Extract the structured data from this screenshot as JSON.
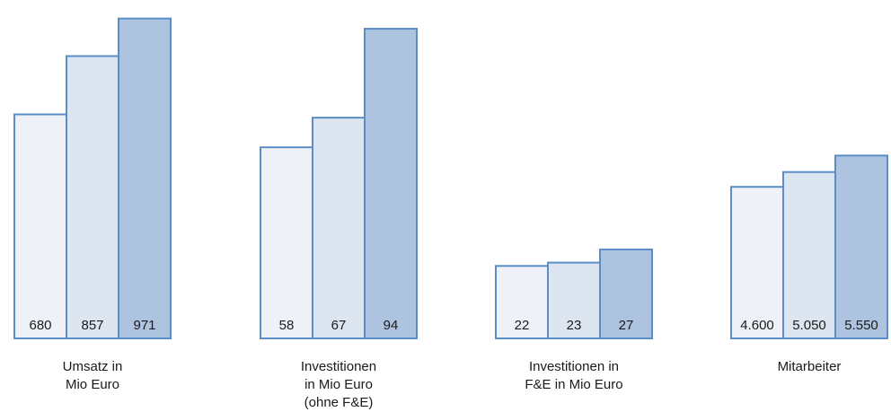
{
  "chart_data": [
    {
      "type": "bar",
      "categories": [
        "",
        "",
        ""
      ],
      "values": [
        680,
        857,
        971
      ],
      "value_labels": [
        "680",
        "857",
        "971"
      ],
      "label_lines": [
        "Umsatz in",
        "Mio Euro"
      ],
      "ylim": [
        0,
        1000
      ]
    },
    {
      "type": "bar",
      "categories": [
        "",
        "",
        ""
      ],
      "values": [
        58,
        67,
        94
      ],
      "value_labels": [
        "58",
        "67",
        "94"
      ],
      "label_lines": [
        "Investitionen",
        "in Mio Euro",
        "(ohne F&E)"
      ],
      "ylim": [
        0,
        100
      ]
    },
    {
      "type": "bar",
      "categories": [
        "",
        "",
        ""
      ],
      "values": [
        22,
        23,
        27
      ],
      "value_labels": [
        "22",
        "23",
        "27"
      ],
      "label_lines": [
        "Investitionen in",
        "F&E in Mio Euro"
      ],
      "ylim": [
        0,
        100
      ]
    },
    {
      "type": "bar",
      "categories": [
        "",
        "",
        ""
      ],
      "values": [
        4600,
        5050,
        5550
      ],
      "value_labels": [
        "4.600",
        "5.050",
        "5.550"
      ],
      "label_lines": [
        "Mitarbeiter"
      ],
      "ylim": [
        0,
        10000
      ]
    }
  ],
  "colors": {
    "bar_fills": [
      "#eef2f8",
      "#dde5f1",
      "#aec3df"
    ],
    "bar_stroke": "#5b8ec6"
  }
}
